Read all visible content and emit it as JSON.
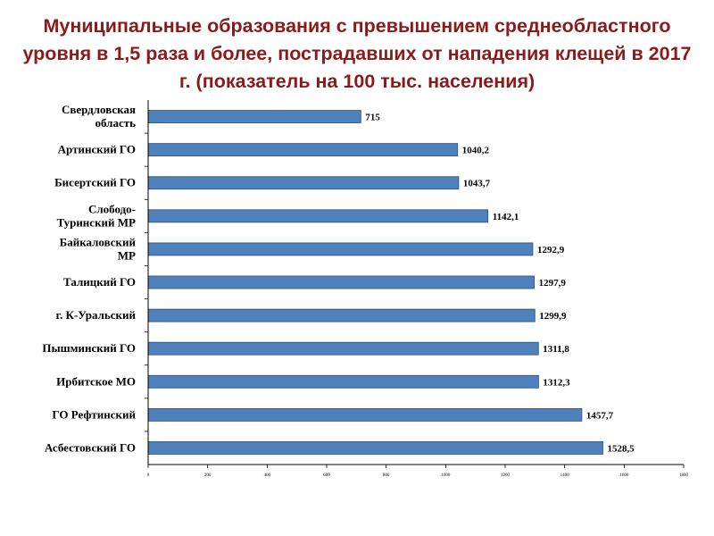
{
  "title": "Муниципальные образования с превышением среднеобластного уровня в 1,5 раза и более, пострадавших от нападения клещей в 2017 г.  (показатель на 100 тыс. населения)",
  "colors": {
    "bar": "#4f81bd",
    "bar_border": "#2c4f7c",
    "title": "#8b1a1a"
  },
  "chart_data": {
    "type": "bar",
    "orientation": "horizontal",
    "title": "Муниципальные образования с превышением среднеобластного уровня в 1,5 раза и более, пострадавших от нападения клещей в 2017 г.  (показатель на 100 тыс. населения)",
    "categories": [
      [
        "Свердловская",
        "область"
      ],
      [
        "Артинский ГО"
      ],
      [
        "Бисертский ГО"
      ],
      [
        "Слободо-",
        "Туринский МР"
      ],
      [
        "Байкаловский",
        "МР"
      ],
      [
        "Талицкий ГО"
      ],
      [
        "г. К-Уральский"
      ],
      [
        "Пышминский ГО"
      ],
      [
        "Ирбитское МО"
      ],
      [
        "ГО Рефтинский"
      ],
      [
        "Асбестовский ГО"
      ]
    ],
    "values": [
      715,
      1040.2,
      1043.7,
      1142.1,
      1292.9,
      1297.9,
      1299.9,
      1311.8,
      1312.3,
      1457.7,
      1528.5
    ],
    "value_labels": [
      "715",
      "1040,2",
      "1043,7",
      "1142,1",
      "1292,9",
      "1297,9",
      "1299,9",
      "1311,8",
      "1312,3",
      "1457,7",
      "1528,5"
    ],
    "xlim": [
      0,
      1800
    ],
    "xticks": [
      0,
      200,
      400,
      600,
      800,
      1000,
      1200,
      1400,
      1600,
      1800
    ],
    "xtick_labels": [
      "0",
      "200",
      "400",
      "600",
      "800",
      "1000",
      "1200",
      "1400",
      "1600",
      "1800"
    ],
    "xlabel": "",
    "ylabel": "",
    "grid": false
  }
}
